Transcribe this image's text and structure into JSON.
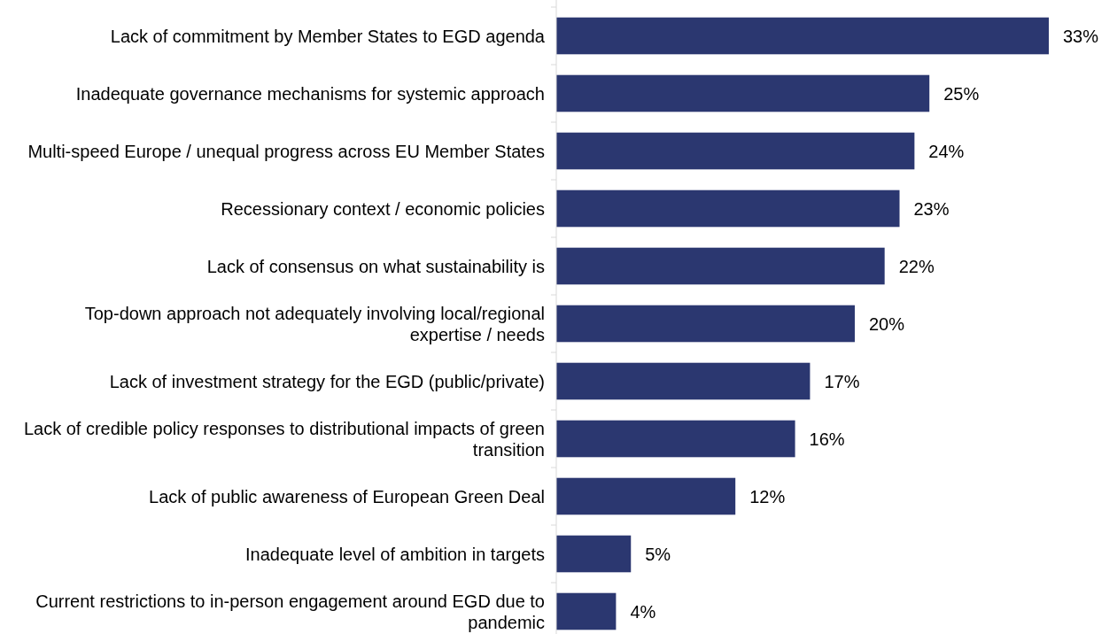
{
  "chart_data": {
    "type": "bar",
    "orientation": "horizontal",
    "categories": [
      "Lack of commitment by Member States to EGD agenda",
      "Inadequate governance mechanisms for systemic approach",
      "Multi-speed Europe / unequal progress across EU Member States",
      "Recessionary context / economic policies",
      "Lack of consensus on what sustainability is",
      "Top-down approach not adequately involving local/regional expertise / needs",
      "Lack of investment strategy for the EGD (public/private)",
      "Lack of credible policy responses to distributional impacts of green transition",
      "Lack of public awareness of European Green Deal",
      "Inadequate level of ambition in targets",
      "Current restrictions to in-person engagement around EGD due to pandemic"
    ],
    "values": [
      33,
      25,
      24,
      23,
      22,
      20,
      17,
      16,
      12,
      5,
      4
    ],
    "value_labels": [
      "33%",
      "25%",
      "24%",
      "23%",
      "22%",
      "20%",
      "17%",
      "16%",
      "12%",
      "5%",
      "4%"
    ],
    "color": "#2b3770"
  }
}
